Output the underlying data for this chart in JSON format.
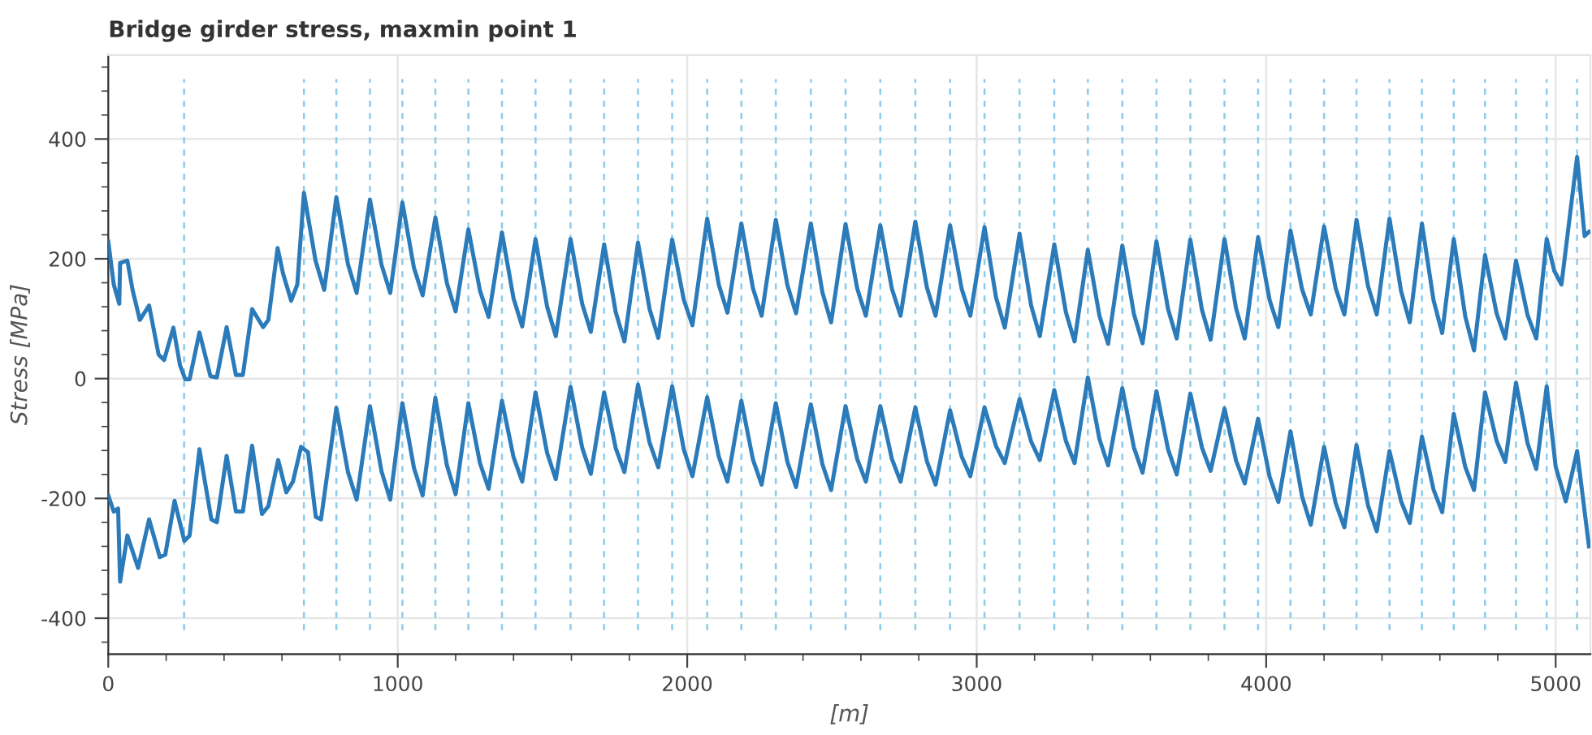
{
  "chart_data": {
    "type": "line",
    "title": "Bridge girder stress, maxmin point 1",
    "xlabel": "[m]",
    "ylabel": "Stress [MPa]",
    "xlim": [
      0,
      5120
    ],
    "ylim": [
      -460,
      540
    ],
    "xticks": [
      0,
      1000,
      2000,
      3000,
      4000,
      5000
    ],
    "yticks": [
      -400,
      -200,
      0,
      200,
      400
    ],
    "grid": true,
    "marker": "none",
    "line_style": "solid",
    "series": [
      {
        "color": "#2b7bba",
        "x": [
          0,
          19,
          38,
          41,
          66,
          84,
          109,
          141,
          174,
          193,
          225,
          248,
          266,
          281,
          315,
          353,
          375,
          409,
          441,
          465,
          497,
          535,
          553,
          585,
          604,
          632,
          653,
          676,
          716,
          746,
          788,
          828,
          858,
          904,
          944,
          974,
          1016,
          1056,
          1086,
          1130,
          1170,
          1200,
          1244,
          1284,
          1314,
          1360,
          1400,
          1430,
          1476,
          1516,
          1546,
          1597,
          1637,
          1667,
          1713,
          1753,
          1783,
          1830,
          1870,
          1900,
          1948,
          1988,
          2018,
          2069,
          2109,
          2139,
          2187,
          2227,
          2257,
          2306,
          2346,
          2376,
          2427,
          2467,
          2497,
          2547,
          2587,
          2617,
          2667,
          2707,
          2737,
          2788,
          2828,
          2858,
          2908,
          2948,
          2978,
          3027,
          3067,
          3097,
          3148,
          3188,
          3218,
          3268,
          3308,
          3338,
          3384,
          3424,
          3454,
          3503,
          3543,
          3573,
          3621,
          3661,
          3691,
          3738,
          3778,
          3808,
          3856,
          3896,
          3926,
          3972,
          4012,
          4042,
          4084,
          4124,
          4154,
          4200,
          4240,
          4270,
          4312,
          4352,
          4382,
          4426,
          4466,
          4496,
          4538,
          4578,
          4608,
          4648,
          4688,
          4718,
          4756,
          4796,
          4826,
          4863,
          4903,
          4933,
          4969,
          4995,
          5020,
          5074,
          5100,
          5115
        ],
        "values": [
          229,
          157,
          125,
          193,
          197,
          148,
          98,
          122,
          40,
          31,
          85,
          22,
          -1,
          -1,
          77,
          4,
          2,
          86,
          6,
          6,
          116,
          86,
          98,
          218,
          175,
          130,
          157,
          310,
          197,
          148,
          303,
          191,
          143,
          299,
          190,
          143,
          294,
          185,
          139,
          269,
          159,
          112,
          249,
          147,
          103,
          244,
          134,
          87,
          233,
          120,
          71,
          233,
          125,
          78,
          224,
          111,
          62,
          227,
          116,
          68,
          232,
          132,
          89,
          267,
          157,
          110,
          259,
          151,
          105,
          265,
          156,
          109,
          259,
          144,
          94,
          258,
          151,
          105,
          256,
          150,
          105,
          262,
          152,
          105,
          256,
          150,
          105,
          253,
          135,
          85,
          242,
          122,
          71,
          224,
          111,
          62,
          215,
          105,
          58,
          222,
          108,
          59,
          229,
          116,
          67,
          232,
          115,
          65,
          233,
          117,
          67,
          236,
          131,
          86,
          247,
          149,
          107,
          254,
          151,
          107,
          265,
          154,
          107,
          267,
          146,
          94,
          259,
          131,
          76,
          233,
          103,
          47,
          206,
          109,
          67,
          197,
          106,
          67,
          233,
          180,
          157,
          370,
          238,
          245
        ]
      },
      {
        "color": "#2b7bba",
        "x": [
          0,
          19,
          34,
          41,
          66,
          103,
          141,
          178,
          197,
          229,
          263,
          281,
          315,
          356,
          375,
          409,
          441,
          465,
          497,
          531,
          553,
          587,
          615,
          638,
          666,
          690,
          717,
          735,
          788,
          828,
          858,
          904,
          944,
          974,
          1016,
          1056,
          1086,
          1130,
          1170,
          1200,
          1244,
          1284,
          1314,
          1360,
          1400,
          1430,
          1476,
          1516,
          1546,
          1597,
          1637,
          1667,
          1713,
          1753,
          1783,
          1830,
          1870,
          1900,
          1948,
          1988,
          2018,
          2069,
          2109,
          2139,
          2187,
          2227,
          2257,
          2306,
          2346,
          2376,
          2427,
          2467,
          2497,
          2547,
          2587,
          2617,
          2667,
          2707,
          2737,
          2788,
          2828,
          2858,
          2908,
          2948,
          2978,
          3027,
          3067,
          3097,
          3148,
          3188,
          3218,
          3268,
          3308,
          3338,
          3384,
          3424,
          3454,
          3503,
          3543,
          3573,
          3621,
          3661,
          3691,
          3738,
          3778,
          3808,
          3856,
          3896,
          3926,
          3972,
          4012,
          4042,
          4084,
          4124,
          4154,
          4200,
          4240,
          4270,
          4312,
          4352,
          4382,
          4426,
          4466,
          4496,
          4538,
          4578,
          4608,
          4648,
          4688,
          4718,
          4756,
          4796,
          4826,
          4863,
          4903,
          4933,
          4969,
          5000,
          5035,
          5074,
          5115
        ],
        "values": [
          -195,
          -222,
          -217,
          -339,
          -262,
          -316,
          -235,
          -298,
          -294,
          -204,
          -271,
          -262,
          -118,
          -235,
          -240,
          -129,
          -222,
          -222,
          -112,
          -226,
          -213,
          -136,
          -190,
          -172,
          -114,
          -123,
          -231,
          -235,
          -49,
          -156,
          -202,
          -46,
          -155,
          -202,
          -41,
          -149,
          -195,
          -32,
          -145,
          -193,
          -41,
          -141,
          -184,
          -37,
          -131,
          -172,
          -23,
          -124,
          -168,
          -14,
          -115,
          -159,
          -23,
          -116,
          -156,
          -10,
          -107,
          -148,
          -13,
          -118,
          -163,
          -31,
          -130,
          -172,
          -37,
          -135,
          -177,
          -41,
          -139,
          -181,
          -43,
          -143,
          -186,
          -46,
          -134,
          -172,
          -46,
          -134,
          -172,
          -48,
          -138,
          -177,
          -53,
          -130,
          -163,
          -48,
          -113,
          -141,
          -34,
          -105,
          -136,
          -19,
          -104,
          -141,
          2,
          -101,
          -145,
          -16,
          -115,
          -157,
          -21,
          -118,
          -160,
          -25,
          -115,
          -154,
          -50,
          -137,
          -175,
          -67,
          -164,
          -206,
          -88,
          -197,
          -244,
          -114,
          -208,
          -248,
          -111,
          -212,
          -255,
          -121,
          -205,
          -241,
          -97,
          -185,
          -223,
          -59,
          -148,
          -186,
          -23,
          -104,
          -139,
          -7,
          -108,
          -151,
          -13,
          -147,
          -205,
          -121,
          -280
        ]
      }
    ],
    "ref_lines": [
      {
        "axis": "x",
        "value": 262,
        "color": "#8ccbea",
        "line_style": "dashed"
      },
      {
        "axis": "x",
        "value": 676,
        "color": "#8ccbea",
        "line_style": "dashed"
      },
      {
        "axis": "x",
        "value": 788,
        "color": "#8ccbea",
        "line_style": "dashed"
      },
      {
        "axis": "x",
        "value": 904,
        "color": "#8ccbea",
        "line_style": "dashed"
      },
      {
        "axis": "x",
        "value": 1016,
        "color": "#8ccbea",
        "line_style": "dashed"
      },
      {
        "axis": "x",
        "value": 1130,
        "color": "#8ccbea",
        "line_style": "dashed"
      },
      {
        "axis": "x",
        "value": 1244,
        "color": "#8ccbea",
        "line_style": "dashed"
      },
      {
        "axis": "x",
        "value": 1360,
        "color": "#8ccbea",
        "line_style": "dashed"
      },
      {
        "axis": "x",
        "value": 1476,
        "color": "#8ccbea",
        "line_style": "dashed"
      },
      {
        "axis": "x",
        "value": 1597,
        "color": "#8ccbea",
        "line_style": "dashed"
      },
      {
        "axis": "x",
        "value": 1713,
        "color": "#8ccbea",
        "line_style": "dashed"
      },
      {
        "axis": "x",
        "value": 1830,
        "color": "#8ccbea",
        "line_style": "dashed"
      },
      {
        "axis": "x",
        "value": 1948,
        "color": "#8ccbea",
        "line_style": "dashed"
      },
      {
        "axis": "x",
        "value": 2069,
        "color": "#8ccbea",
        "line_style": "dashed"
      },
      {
        "axis": "x",
        "value": 2187,
        "color": "#8ccbea",
        "line_style": "dashed"
      },
      {
        "axis": "x",
        "value": 2306,
        "color": "#8ccbea",
        "line_style": "dashed"
      },
      {
        "axis": "x",
        "value": 2427,
        "color": "#8ccbea",
        "line_style": "dashed"
      },
      {
        "axis": "x",
        "value": 2547,
        "color": "#8ccbea",
        "line_style": "dashed"
      },
      {
        "axis": "x",
        "value": 2667,
        "color": "#8ccbea",
        "line_style": "dashed"
      },
      {
        "axis": "x",
        "value": 2788,
        "color": "#8ccbea",
        "line_style": "dashed"
      },
      {
        "axis": "x",
        "value": 2908,
        "color": "#8ccbea",
        "line_style": "dashed"
      },
      {
        "axis": "x",
        "value": 3027,
        "color": "#8ccbea",
        "line_style": "dashed"
      },
      {
        "axis": "x",
        "value": 3148,
        "color": "#8ccbea",
        "line_style": "dashed"
      },
      {
        "axis": "x",
        "value": 3268,
        "color": "#8ccbea",
        "line_style": "dashed"
      },
      {
        "axis": "x",
        "value": 3384,
        "color": "#8ccbea",
        "line_style": "dashed"
      },
      {
        "axis": "x",
        "value": 3503,
        "color": "#8ccbea",
        "line_style": "dashed"
      },
      {
        "axis": "x",
        "value": 3621,
        "color": "#8ccbea",
        "line_style": "dashed"
      },
      {
        "axis": "x",
        "value": 3738,
        "color": "#8ccbea",
        "line_style": "dashed"
      },
      {
        "axis": "x",
        "value": 3856,
        "color": "#8ccbea",
        "line_style": "dashed"
      },
      {
        "axis": "x",
        "value": 3972,
        "color": "#8ccbea",
        "line_style": "dashed"
      },
      {
        "axis": "x",
        "value": 4084,
        "color": "#8ccbea",
        "line_style": "dashed"
      },
      {
        "axis": "x",
        "value": 4200,
        "color": "#8ccbea",
        "line_style": "dashed"
      },
      {
        "axis": "x",
        "value": 4312,
        "color": "#8ccbea",
        "line_style": "dashed"
      },
      {
        "axis": "x",
        "value": 4426,
        "color": "#8ccbea",
        "line_style": "dashed"
      },
      {
        "axis": "x",
        "value": 4538,
        "color": "#8ccbea",
        "line_style": "dashed"
      },
      {
        "axis": "x",
        "value": 4648,
        "color": "#8ccbea",
        "line_style": "dashed"
      },
      {
        "axis": "x",
        "value": 4756,
        "color": "#8ccbea",
        "line_style": "dashed"
      },
      {
        "axis": "x",
        "value": 4863,
        "color": "#8ccbea",
        "line_style": "dashed"
      },
      {
        "axis": "x",
        "value": 4969,
        "color": "#8ccbea",
        "line_style": "dashed"
      },
      {
        "axis": "x",
        "value": 5074,
        "color": "#8ccbea",
        "line_style": "dashed"
      }
    ]
  }
}
